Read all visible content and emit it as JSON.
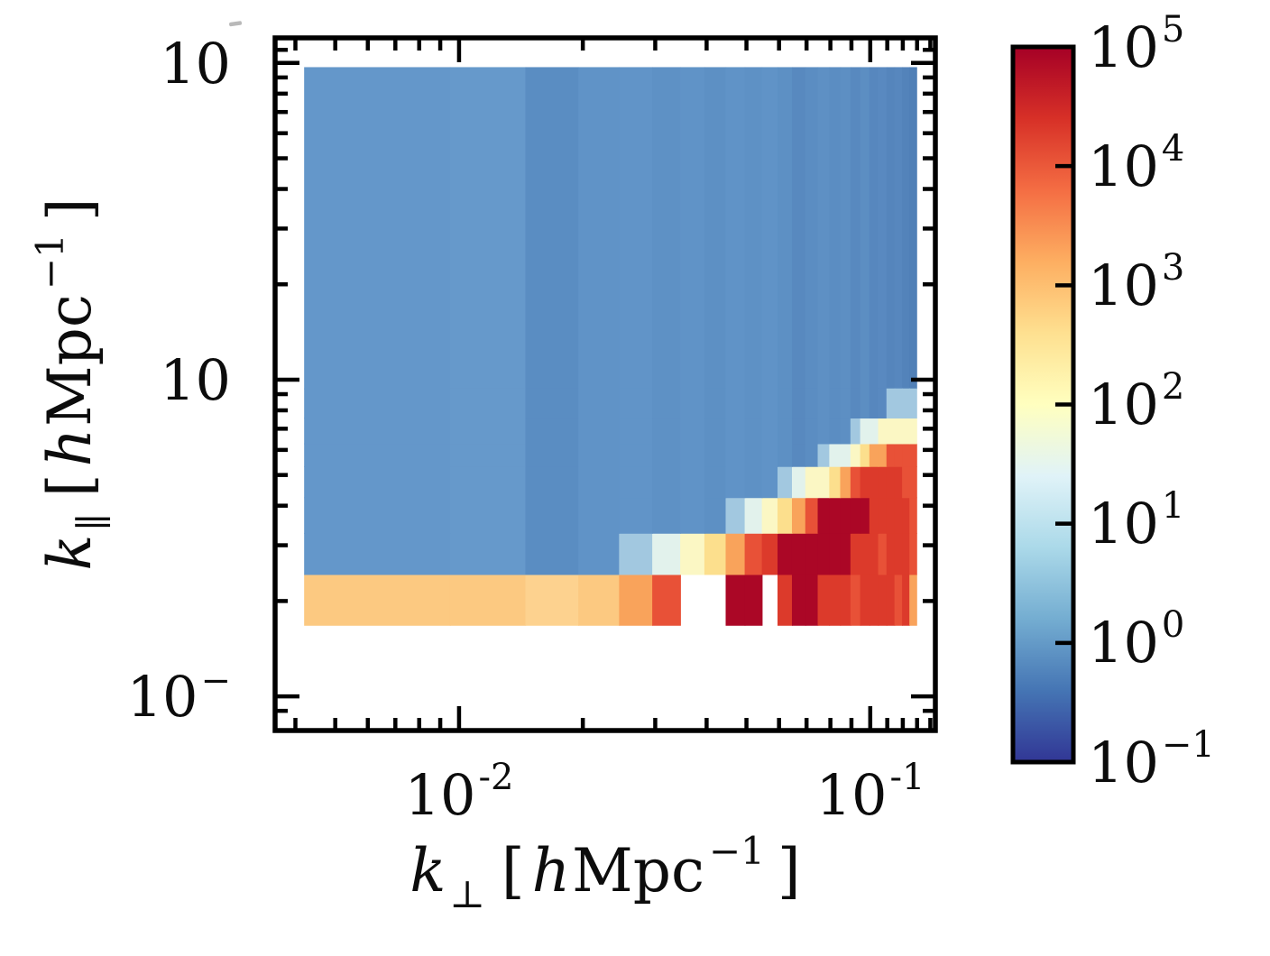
{
  "figure": {
    "kind": "2D cylindrical power spectrum heatmap",
    "background": "#ffffff",
    "frame_color": "#000000"
  },
  "axes": {
    "x_title": {
      "var": "k",
      "sub": "⊥",
      "open": "[",
      "hubble": "h",
      "unit": "Mpc",
      "sup": "−1",
      "close": "]"
    },
    "y_title": {
      "var": "k",
      "sub": "∥",
      "open": "[",
      "hubble": "h",
      "unit": "Mpc",
      "sup": "−1",
      "close": "]"
    },
    "x_tick_labels": [
      {
        "base": "10",
        "sup": "-2"
      },
      {
        "base": "10",
        "sup": "-1"
      }
    ],
    "y_tick_labels": [
      {
        "base": "10",
        "sup": ""
      },
      {
        "base": "10",
        "sup": ""
      },
      {
        "base": "10",
        "sup": "−"
      }
    ],
    "stray_mark": "‾"
  },
  "colorbar": {
    "tick_labels": [
      {
        "base": "10",
        "sup": "5"
      },
      {
        "base": "10",
        "sup": "4"
      },
      {
        "base": "10",
        "sup": "3"
      },
      {
        "base": "10",
        "sup": "2"
      },
      {
        "base": "10",
        "sup": "1"
      },
      {
        "base": "10",
        "sup": "0"
      },
      {
        "base": "10",
        "sup": "−1"
      }
    ],
    "inner_tick_exponents": [
      4,
      3,
      2,
      1,
      0
    ],
    "range_exponents": [
      -1,
      5
    ],
    "gradient_top_to_bottom": [
      "#A50026",
      "#D73027",
      "#F46D43",
      "#FDAE61",
      "#FEE090",
      "#FFFFBF",
      "#E0F3F8",
      "#ABD9E9",
      "#74ADD1",
      "#4575B4",
      "#313695"
    ]
  },
  "chart_data": {
    "type": "heatmap",
    "title": "",
    "xlabel": "k_perp [h Mpc^-1]",
    "ylabel": "k_parallel [h Mpc^-1]",
    "x_axis": {
      "scale": "log",
      "range": [
        0.00357,
        0.144
      ],
      "major_ticks": [
        0.01,
        0.1
      ],
      "minor_ticks": [
        0.004,
        0.005,
        0.006,
        0.007,
        0.008,
        0.009,
        0.02,
        0.03,
        0.04,
        0.05,
        0.06,
        0.07,
        0.08,
        0.09,
        0.11,
        0.12,
        0.13,
        0.14
      ]
    },
    "y_axis": {
      "scale": "log",
      "range": [
        0.078,
        12
      ],
      "major_ticks": [
        10,
        1,
        0.1
      ],
      "minor_ticks": [
        11,
        9,
        8,
        7,
        6,
        5,
        4,
        3,
        2,
        0.9,
        0.8,
        0.7,
        0.6,
        0.5,
        0.4,
        0.3,
        0.2,
        0.09
      ]
    },
    "color_scale": {
      "scale": "log",
      "range": [
        0.1,
        100000
      ],
      "colormap": "RdYlBu_r"
    },
    "kperp_bin_edges": [
      0.0042,
      0.0095,
      0.0145,
      0.0195,
      0.0245,
      0.0295,
      0.0345,
      0.0395,
      0.0445,
      0.0495,
      0.0545,
      0.0595,
      0.0645,
      0.0695,
      0.0745,
      0.0795,
      0.0845,
      0.0895,
      0.0945,
      0.0995,
      0.1045,
      0.1095,
      0.1145,
      0.1195,
      0.1245,
      0.1295
    ],
    "kpar_row_edges": [
      0.168,
      0.243,
      0.328,
      0.425,
      0.533,
      0.629,
      0.758,
      0.938
    ],
    "kpar_top": 9.7,
    "background_column_colors": [
      "#6497CA",
      "#6699CB",
      "#5A8DC2",
      "#6093C7",
      "#6194C8",
      "#5E91C5",
      "#6093C7",
      "#5D90C4",
      "#6093C7",
      "#5E91C5",
      "#6093C7",
      "#5D90C4",
      "#5889BF",
      "#5B8DC2",
      "#5E90C4",
      "#5B8DC2",
      "#5D8FC3",
      "#5889BF",
      "#5C8EC2",
      "#5787BE",
      "#5989C0",
      "#5585BC",
      "#5787BE",
      "#5383BA",
      "#5080B7"
    ],
    "palette": {
      "T": "#FCC981",
      "T2": "#FDD28F",
      "O": "#F9A35B",
      "RO": "#E85137",
      "R": "#DC3A2B",
      "DR": "#AB0726",
      "LB": "#A2C8E0",
      "PC": "#E2F2EC",
      "PY": "#FBF7C4",
      "Y": "#FCDF8D",
      "W": "#FFFFFF"
    },
    "cells_rows_bottom_to_top": [
      [
        "T",
        "T",
        "T2",
        "T",
        "O",
        "RO",
        "W",
        "W",
        "DR",
        "DR",
        "W",
        "R",
        "DR",
        "DR",
        "R",
        "R",
        "R",
        "RO",
        "R",
        "R",
        "R",
        "R",
        "RO",
        "R",
        "O"
      ],
      [
        ".",
        ".",
        ".",
        ".",
        "LB",
        "PC",
        "PY",
        "Y",
        "O",
        "RO",
        "R",
        "DR",
        "DR",
        "DR",
        "DR",
        "DR",
        "DR",
        "R",
        "R",
        "R",
        "RO",
        "R",
        "R",
        "R",
        "RO"
      ],
      [
        ".",
        ".",
        ".",
        ".",
        ".",
        ".",
        ".",
        ".",
        "LB",
        "PC",
        "PY",
        "Y",
        "O",
        "RO",
        "DR",
        "DR",
        "DR",
        "DR",
        "DR",
        "R",
        "R",
        "R",
        "R",
        "R",
        "RO"
      ],
      [
        ".",
        ".",
        ".",
        ".",
        ".",
        ".",
        ".",
        ".",
        ".",
        ".",
        ".",
        "LB",
        "PC",
        "PY",
        "PY",
        "Y",
        "O",
        "RO",
        "R",
        "R",
        "R",
        "R",
        "R",
        "RO",
        "RO"
      ],
      [
        ".",
        ".",
        ".",
        ".",
        ".",
        ".",
        ".",
        ".",
        ".",
        ".",
        ".",
        ".",
        ".",
        ".",
        "LB",
        "PC",
        "PC",
        "PY",
        "Y",
        "O",
        "O",
        "RO",
        "RO",
        "RO",
        "RO"
      ],
      [
        ".",
        ".",
        ".",
        ".",
        ".",
        ".",
        ".",
        ".",
        ".",
        ".",
        ".",
        ".",
        ".",
        ".",
        ".",
        ".",
        ".",
        "LB",
        "PC",
        "PC",
        "PY",
        "PY",
        "PY",
        "PY",
        "PY"
      ],
      [
        ".",
        ".",
        ".",
        ".",
        ".",
        ".",
        ".",
        ".",
        ".",
        ".",
        ".",
        ".",
        ".",
        ".",
        ".",
        ".",
        ".",
        ".",
        ".",
        ".",
        ".",
        "LB",
        "LB",
        "LB",
        "LB"
      ]
    ]
  }
}
